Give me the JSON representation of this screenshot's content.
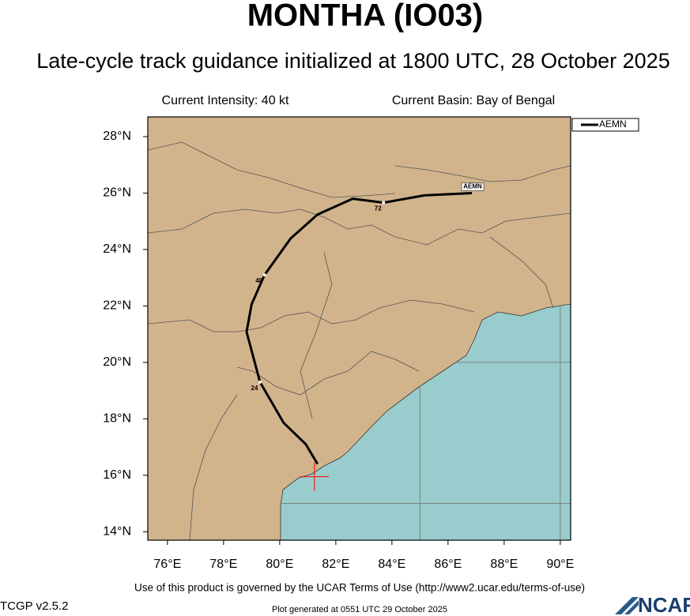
{
  "chart_data": {
    "type": "track",
    "title": "MONTHA (IO03)",
    "subtitle": "Late-cycle track guidance initialized at 1800 UTC, 28 October 2025",
    "annotations": [
      "Current Intensity: 40 kt",
      "Current Basin: Bay of Bengal"
    ],
    "footer": "Use of this product is governed by the UCAR Terms of Use (http://www2.ucar.edu/terms-of-use)",
    "version": "TCGP v2.5.2",
    "generated": "Plot generated at 0551 UTC   29 October 2025",
    "logo": "NCAR",
    "xlim": [
      75.3,
      90.37
    ],
    "ylim": [
      13.7,
      28.7
    ],
    "xticks": [
      {
        "value": 76,
        "label": "76°E"
      },
      {
        "value": 78,
        "label": "78°E"
      },
      {
        "value": 80,
        "label": "80°E"
      },
      {
        "value": 82,
        "label": "82°E"
      },
      {
        "value": 84,
        "label": "84°E"
      },
      {
        "value": 86,
        "label": "86°E"
      },
      {
        "value": 88,
        "label": "88°E"
      },
      {
        "value": 90,
        "label": "90°E"
      }
    ],
    "yticks": [
      {
        "value": 14,
        "label": "14°N"
      },
      {
        "value": 16,
        "label": "16°N"
      },
      {
        "value": 18,
        "label": "18°N"
      },
      {
        "value": 20,
        "label": "20°N"
      },
      {
        "value": 22,
        "label": "22°N"
      },
      {
        "value": 24,
        "label": "24°N"
      },
      {
        "value": 26,
        "label": "26°N"
      },
      {
        "value": 28,
        "label": "28°N"
      }
    ],
    "grid": {
      "spacing": 5,
      "color": "#808080"
    },
    "land_color": "#d2b48c",
    "sea_color": "#99cccc",
    "legend": "upper right outside",
    "series": [
      {
        "name": "AEMN",
        "color": "#000000",
        "x": [
          81.35,
          80.93,
          80.14,
          79.3,
          78.82,
          79.0,
          79.46,
          80.39,
          81.35,
          82.6,
          83.7,
          85.16,
          86.85
        ],
        "values": [
          16.4,
          17.1,
          17.86,
          19.3,
          21.08,
          22.06,
          23.1,
          24.39,
          25.24,
          25.8,
          25.66,
          25.92,
          26.0
        ]
      }
    ],
    "hour_marks": [
      {
        "x": 79.3,
        "y": 19.3,
        "hour": 24
      },
      {
        "x": 79.46,
        "y": 23.1,
        "hour": 48
      },
      {
        "x": 83.7,
        "y": 25.66,
        "hour": 72
      }
    ],
    "current_position": {
      "x": 81.24,
      "y": 15.95,
      "color": "#ff0000"
    }
  }
}
